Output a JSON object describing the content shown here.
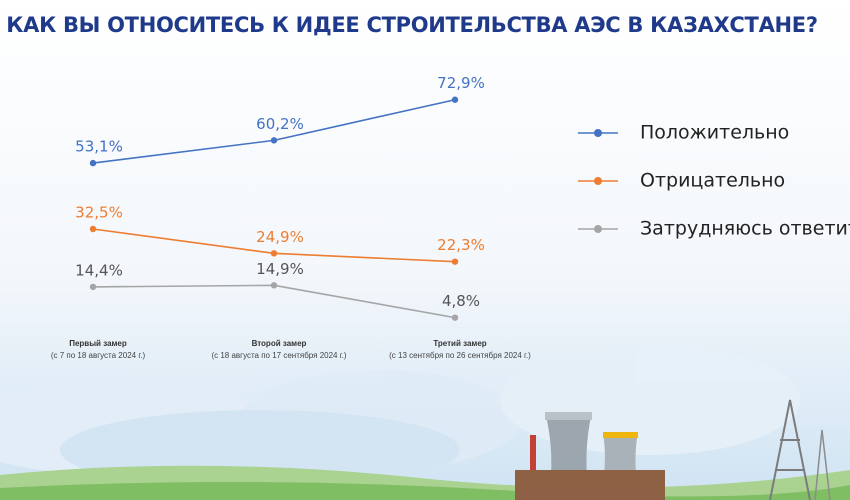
{
  "chart_data": {
    "type": "line",
    "title": "КАК ВЫ ОТНОСИТЕСЬ К ИДЕЕ СТРОИТЕЛЬСТВА АЭС В КАЗАХСТАНЕ?",
    "categories": [
      "Первый замер",
      "Второй замер",
      "Третий замер"
    ],
    "category_subtitles": [
      "(с 7 по 18 августа 2024 г.)",
      "(с 18 августа по 17 сентября 2024 г.)",
      "(с 13 сентября по 26 сентября 2024 г.)"
    ],
    "series": [
      {
        "name": "Положительно",
        "color": "#4472c4",
        "values": [
          53.1,
          60.2,
          72.9
        ],
        "value_labels": [
          "53,1%",
          "60,2%",
          "72,9%"
        ]
      },
      {
        "name": "Отрицательно",
        "color": "#ed7d31",
        "values": [
          32.5,
          24.9,
          22.3
        ],
        "value_labels": [
          "32,5%",
          "24,9%",
          "22,3%"
        ]
      },
      {
        "name": "Затрудняюсь ответить",
        "color": "#a5a5a5",
        "values": [
          14.4,
          14.9,
          4.8
        ],
        "value_labels": [
          "14,4%",
          "14,9%",
          "4,8%"
        ]
      }
    ],
    "ylim": [
      0,
      100
    ],
    "legend": "right"
  }
}
